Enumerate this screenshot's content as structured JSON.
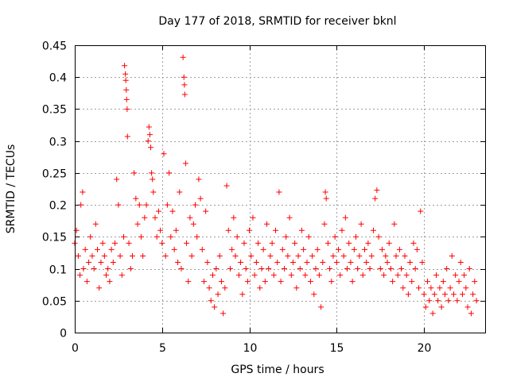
{
  "chart_data": {
    "type": "scatter",
    "title": "Day 177 of 2018, SRMTID for receiver bknl",
    "xlabel": "GPS time / hours",
    "ylabel": "SRMTID / TECUs",
    "xlim": [
      0,
      23.5
    ],
    "ylim": [
      0,
      0.45
    ],
    "xticks": [
      0,
      5,
      10,
      15,
      20
    ],
    "xtick_labels": [
      "0",
      "5",
      "10",
      "15",
      "20"
    ],
    "yticks": [
      0,
      0.05,
      0.1,
      0.15,
      0.2,
      0.25,
      0.3,
      0.35,
      0.4,
      0.45
    ],
    "ytick_labels": [
      "0",
      "0.05",
      "0.1",
      "0.15",
      "0.2",
      "0.25",
      "0.3",
      "0.35",
      "0.4",
      "0.45"
    ],
    "grid": true,
    "legend": "none",
    "marker": "+",
    "color": "#ff0000",
    "points": [
      [
        0.0,
        0.14
      ],
      [
        0.1,
        0.16
      ],
      [
        0.2,
        0.12
      ],
      [
        0.3,
        0.09
      ],
      [
        0.35,
        0.2
      ],
      [
        0.45,
        0.22
      ],
      [
        0.5,
        0.1
      ],
      [
        0.6,
        0.13
      ],
      [
        0.7,
        0.08
      ],
      [
        0.8,
        0.11
      ],
      [
        0.9,
        0.15
      ],
      [
        1.0,
        0.12
      ],
      [
        1.1,
        0.1
      ],
      [
        1.2,
        0.17
      ],
      [
        1.3,
        0.13
      ],
      [
        1.4,
        0.07
      ],
      [
        1.5,
        0.11
      ],
      [
        1.6,
        0.14
      ],
      [
        1.7,
        0.12
      ],
      [
        1.8,
        0.09
      ],
      [
        1.9,
        0.1
      ],
      [
        2.0,
        0.08
      ],
      [
        2.1,
        0.13
      ],
      [
        2.2,
        0.11
      ],
      [
        2.3,
        0.14
      ],
      [
        2.4,
        0.24
      ],
      [
        2.5,
        0.2
      ],
      [
        2.6,
        0.12
      ],
      [
        2.7,
        0.09
      ],
      [
        2.8,
        0.15
      ],
      [
        2.85,
        0.418
      ],
      [
        2.9,
        0.405
      ],
      [
        2.92,
        0.395
      ],
      [
        2.95,
        0.38
      ],
      [
        2.97,
        0.365
      ],
      [
        3.0,
        0.35
      ],
      [
        3.02,
        0.307
      ],
      [
        3.1,
        0.14
      ],
      [
        3.2,
        0.1
      ],
      [
        3.3,
        0.12
      ],
      [
        3.4,
        0.25
      ],
      [
        3.5,
        0.21
      ],
      [
        3.6,
        0.17
      ],
      [
        3.7,
        0.2
      ],
      [
        3.8,
        0.15
      ],
      [
        3.9,
        0.12
      ],
      [
        4.0,
        0.18
      ],
      [
        4.1,
        0.2
      ],
      [
        4.2,
        0.3
      ],
      [
        4.25,
        0.322
      ],
      [
        4.3,
        0.31
      ],
      [
        4.35,
        0.29
      ],
      [
        4.4,
        0.25
      ],
      [
        4.45,
        0.24
      ],
      [
        4.5,
        0.22
      ],
      [
        4.6,
        0.18
      ],
      [
        4.7,
        0.15
      ],
      [
        4.8,
        0.19
      ],
      [
        4.9,
        0.16
      ],
      [
        5.0,
        0.14
      ],
      [
        5.1,
        0.28
      ],
      [
        5.2,
        0.12
      ],
      [
        5.3,
        0.2
      ],
      [
        5.4,
        0.25
      ],
      [
        5.5,
        0.15
      ],
      [
        5.6,
        0.19
      ],
      [
        5.7,
        0.13
      ],
      [
        5.8,
        0.16
      ],
      [
        5.9,
        0.11
      ],
      [
        6.0,
        0.22
      ],
      [
        6.1,
        0.1
      ],
      [
        6.2,
        0.431
      ],
      [
        6.25,
        0.4
      ],
      [
        6.28,
        0.388
      ],
      [
        6.3,
        0.373
      ],
      [
        6.35,
        0.265
      ],
      [
        6.4,
        0.14
      ],
      [
        6.5,
        0.08
      ],
      [
        6.6,
        0.18
      ],
      [
        6.7,
        0.12
      ],
      [
        6.8,
        0.17
      ],
      [
        6.9,
        0.2
      ],
      [
        7.0,
        0.15
      ],
      [
        7.1,
        0.24
      ],
      [
        7.2,
        0.21
      ],
      [
        7.3,
        0.13
      ],
      [
        7.4,
        0.08
      ],
      [
        7.5,
        0.19
      ],
      [
        7.6,
        0.11
      ],
      [
        7.7,
        0.07
      ],
      [
        7.8,
        0.05
      ],
      [
        7.9,
        0.09
      ],
      [
        8.0,
        0.04
      ],
      [
        8.1,
        0.1
      ],
      [
        8.2,
        0.06
      ],
      [
        8.3,
        0.12
      ],
      [
        8.4,
        0.08
      ],
      [
        8.5,
        0.03
      ],
      [
        8.6,
        0.07
      ],
      [
        8.7,
        0.23
      ],
      [
        8.8,
        0.16
      ],
      [
        8.9,
        0.1
      ],
      [
        9.0,
        0.13
      ],
      [
        9.1,
        0.18
      ],
      [
        9.2,
        0.12
      ],
      [
        9.3,
        0.15
      ],
      [
        9.4,
        0.09
      ],
      [
        9.5,
        0.11
      ],
      [
        9.6,
        0.06
      ],
      [
        9.7,
        0.14
      ],
      [
        9.8,
        0.1
      ],
      [
        9.9,
        0.08
      ],
      [
        10.0,
        0.16
      ],
      [
        10.1,
        0.12
      ],
      [
        10.2,
        0.18
      ],
      [
        10.3,
        0.09
      ],
      [
        10.4,
        0.11
      ],
      [
        10.5,
        0.14
      ],
      [
        10.6,
        0.07
      ],
      [
        10.7,
        0.1
      ],
      [
        10.8,
        0.13
      ],
      [
        10.9,
        0.08
      ],
      [
        11.0,
        0.17
      ],
      [
        11.1,
        0.1
      ],
      [
        11.2,
        0.12
      ],
      [
        11.3,
        0.14
      ],
      [
        11.4,
        0.09
      ],
      [
        11.5,
        0.16
      ],
      [
        11.6,
        0.11
      ],
      [
        11.7,
        0.22
      ],
      [
        11.8,
        0.08
      ],
      [
        11.9,
        0.13
      ],
      [
        12.0,
        0.1
      ],
      [
        12.1,
        0.15
      ],
      [
        12.2,
        0.12
      ],
      [
        12.3,
        0.18
      ],
      [
        12.4,
        0.09
      ],
      [
        12.5,
        0.11
      ],
      [
        12.6,
        0.14
      ],
      [
        12.7,
        0.07
      ],
      [
        12.8,
        0.12
      ],
      [
        12.9,
        0.1
      ],
      [
        13.0,
        0.16
      ],
      [
        13.1,
        0.13
      ],
      [
        13.2,
        0.09
      ],
      [
        13.3,
        0.11
      ],
      [
        13.4,
        0.15
      ],
      [
        13.5,
        0.08
      ],
      [
        13.6,
        0.12
      ],
      [
        13.7,
        0.06
      ],
      [
        13.8,
        0.1
      ],
      [
        13.9,
        0.13
      ],
      [
        14.0,
        0.09
      ],
      [
        14.1,
        0.04
      ],
      [
        14.2,
        0.11
      ],
      [
        14.3,
        0.17
      ],
      [
        14.35,
        0.22
      ],
      [
        14.4,
        0.21
      ],
      [
        14.5,
        0.14
      ],
      [
        14.6,
        0.1
      ],
      [
        14.7,
        0.08
      ],
      [
        14.8,
        0.12
      ],
      [
        14.9,
        0.15
      ],
      [
        15.0,
        0.11
      ],
      [
        15.1,
        0.13
      ],
      [
        15.2,
        0.09
      ],
      [
        15.3,
        0.16
      ],
      [
        15.4,
        0.12
      ],
      [
        15.5,
        0.18
      ],
      [
        15.6,
        0.1
      ],
      [
        15.7,
        0.14
      ],
      [
        15.8,
        0.11
      ],
      [
        15.9,
        0.08
      ],
      [
        16.0,
        0.13
      ],
      [
        16.1,
        0.15
      ],
      [
        16.2,
        0.1
      ],
      [
        16.3,
        0.12
      ],
      [
        16.4,
        0.17
      ],
      [
        16.5,
        0.09
      ],
      [
        16.6,
        0.13
      ],
      [
        16.7,
        0.11
      ],
      [
        16.8,
        0.14
      ],
      [
        16.9,
        0.1
      ],
      [
        17.0,
        0.12
      ],
      [
        17.1,
        0.16
      ],
      [
        17.2,
        0.21
      ],
      [
        17.3,
        0.223
      ],
      [
        17.4,
        0.15
      ],
      [
        17.5,
        0.1
      ],
      [
        17.6,
        0.13
      ],
      [
        17.7,
        0.09
      ],
      [
        17.8,
        0.12
      ],
      [
        17.9,
        0.11
      ],
      [
        18.0,
        0.14
      ],
      [
        18.1,
        0.1
      ],
      [
        18.2,
        0.08
      ],
      [
        18.3,
        0.17
      ],
      [
        18.4,
        0.12
      ],
      [
        18.5,
        0.09
      ],
      [
        18.6,
        0.13
      ],
      [
        18.7,
        0.1
      ],
      [
        18.8,
        0.07
      ],
      [
        18.9,
        0.12
      ],
      [
        19.0,
        0.09
      ],
      [
        19.1,
        0.06
      ],
      [
        19.2,
        0.11
      ],
      [
        19.3,
        0.08
      ],
      [
        19.4,
        0.14
      ],
      [
        19.5,
        0.1
      ],
      [
        19.6,
        0.13
      ],
      [
        19.7,
        0.07
      ],
      [
        19.8,
        0.19
      ],
      [
        19.9,
        0.11
      ],
      [
        20.0,
        0.06
      ],
      [
        20.1,
        0.04
      ],
      [
        20.2,
        0.08
      ],
      [
        20.3,
        0.05
      ],
      [
        20.4,
        0.07
      ],
      [
        20.5,
        0.03
      ],
      [
        20.6,
        0.06
      ],
      [
        20.7,
        0.09
      ],
      [
        20.8,
        0.05
      ],
      [
        20.9,
        0.07
      ],
      [
        21.0,
        0.04
      ],
      [
        21.1,
        0.08
      ],
      [
        21.2,
        0.06
      ],
      [
        21.3,
        0.1
      ],
      [
        21.4,
        0.05
      ],
      [
        21.5,
        0.07
      ],
      [
        21.6,
        0.12
      ],
      [
        21.7,
        0.06
      ],
      [
        21.8,
        0.09
      ],
      [
        21.9,
        0.05
      ],
      [
        22.0,
        0.08
      ],
      [
        22.1,
        0.11
      ],
      [
        22.2,
        0.06
      ],
      [
        22.3,
        0.09
      ],
      [
        22.4,
        0.07
      ],
      [
        22.5,
        0.04
      ],
      [
        22.6,
        0.1
      ],
      [
        22.7,
        0.03
      ],
      [
        22.8,
        0.06
      ],
      [
        22.9,
        0.08
      ],
      [
        23.0,
        0.05
      ]
    ]
  }
}
